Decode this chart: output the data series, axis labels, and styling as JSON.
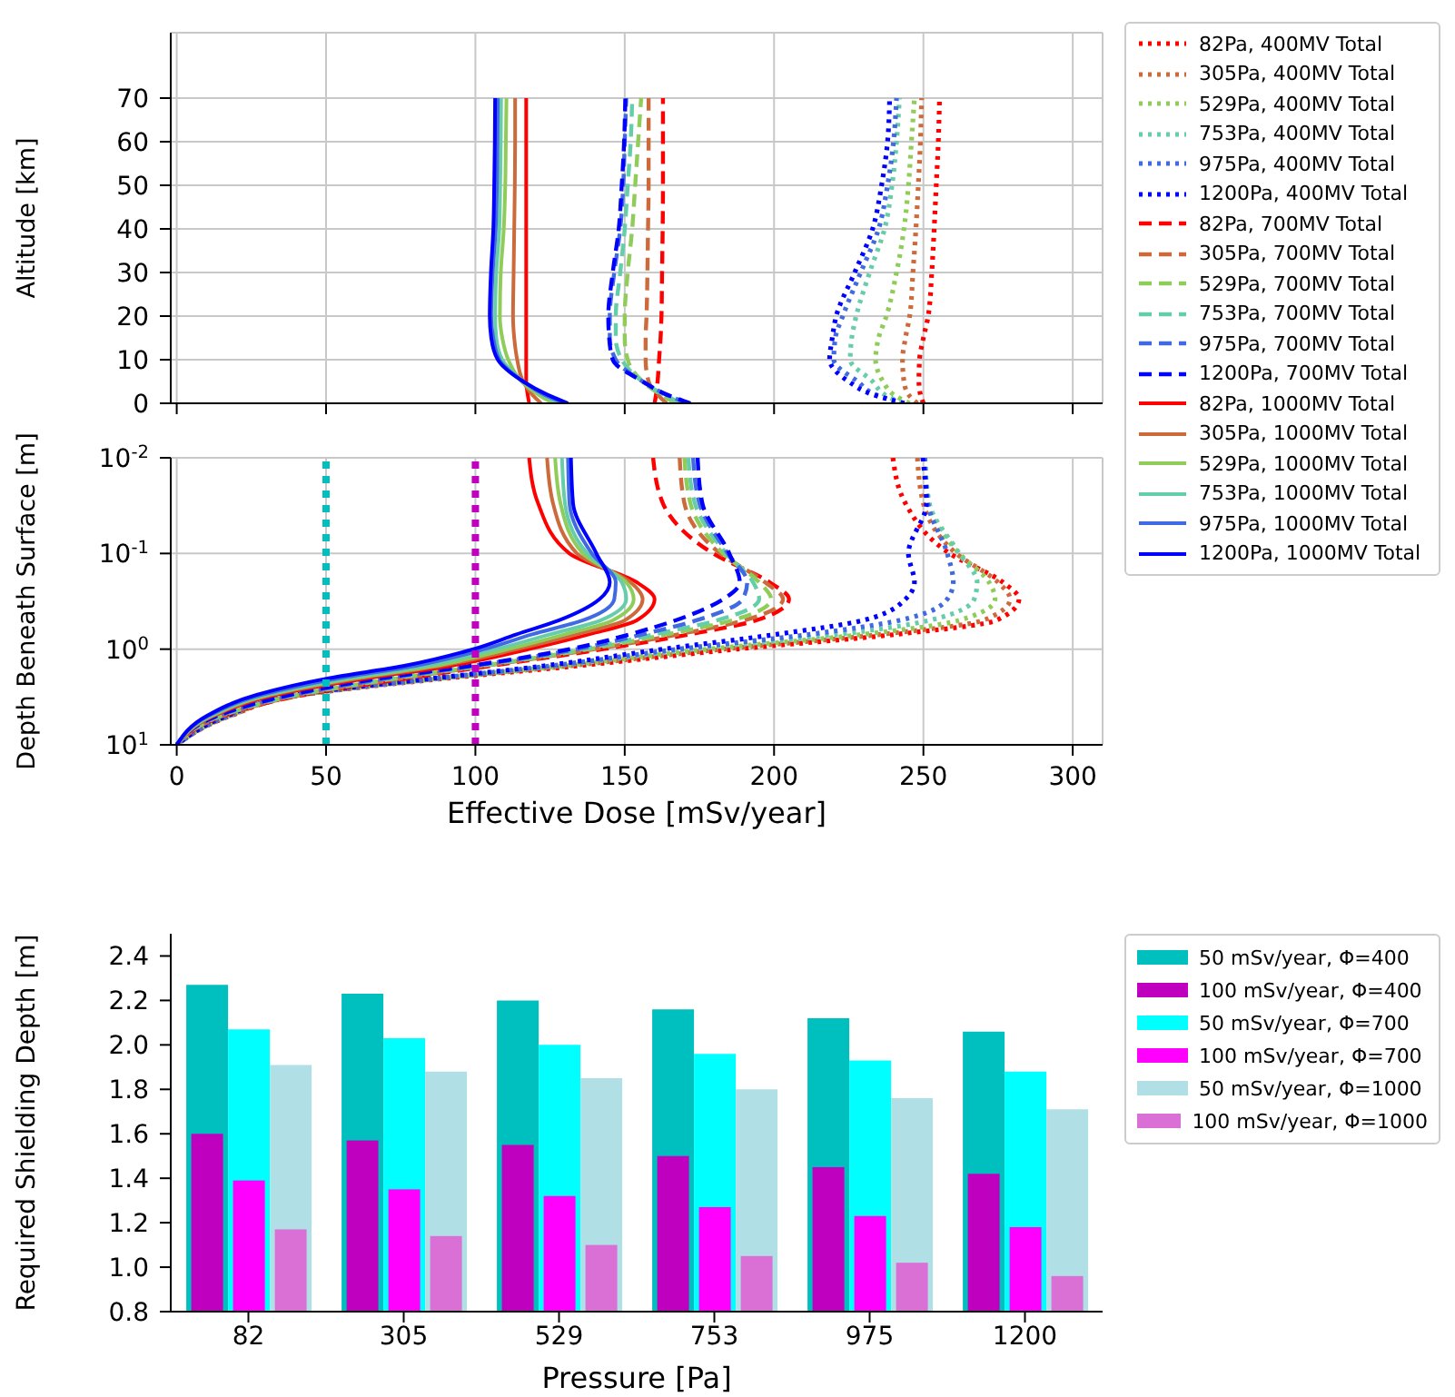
{
  "chart_data": [
    {
      "type": "line",
      "ylabel": "Altitude [km]",
      "xlim": [
        -2,
        310
      ],
      "xticks": [
        0,
        50,
        100,
        150,
        200,
        250,
        300
      ],
      "ylim": [
        0,
        85
      ],
      "yticks": [
        0,
        10,
        20,
        30,
        40,
        50,
        60,
        70
      ],
      "grid": true,
      "legend": "right",
      "tick_labels": "y",
      "series": [
        {
          "name": "82Pa, 400MV Total",
          "color": "#ff0000",
          "line_style": "dotted",
          "x": [
            250,
            249,
            248.5,
            248.7,
            250,
            251.6,
            252.8,
            253.6,
            254.3,
            255,
            255.4
          ],
          "values": [
            0,
            2,
            5,
            10,
            15,
            20,
            30,
            40,
            50,
            60,
            70
          ]
        },
        {
          "name": "305Pa, 400MV Total",
          "color": "#cd6a3c",
          "line_style": "dotted",
          "x": [
            248,
            245,
            243.5,
            243,
            244,
            245.4,
            246.5,
            247.5,
            248.3,
            249,
            249.4
          ],
          "values": [
            0,
            2,
            5,
            10,
            15,
            20,
            30,
            40,
            50,
            60,
            70
          ]
        },
        {
          "name": "529Pa, 400MV Total",
          "color": "#8fcc5a",
          "line_style": "dotted",
          "x": [
            245.4,
            240,
            236.5,
            234,
            235,
            237.6,
            241,
            243.5,
            245,
            246,
            247
          ],
          "values": [
            0,
            2,
            5,
            10,
            15,
            20,
            30,
            40,
            50,
            60,
            70
          ]
        },
        {
          "name": "753Pa, 400MV Total",
          "color": "#66cdaa",
          "line_style": "dotted",
          "x": [
            243,
            237,
            233,
            225.5,
            226,
            227.5,
            232,
            237,
            239.5,
            241,
            242
          ],
          "values": [
            0,
            2,
            5,
            10,
            15,
            20,
            30,
            40,
            50,
            60,
            70
          ]
        },
        {
          "name": "975Pa, 400MV Total",
          "color": "#4169e1",
          "line_style": "dotted",
          "x": [
            243.6,
            234,
            228,
            220,
            220.5,
            223,
            229,
            235,
            238,
            240,
            241
          ],
          "values": [
            0,
            2,
            5,
            10,
            15,
            20,
            30,
            40,
            50,
            60,
            70
          ]
        },
        {
          "name": "1200Pa, 400MV Total",
          "color": "#0000ff",
          "line_style": "dotted",
          "x": [
            243.6,
            233,
            225,
            218.6,
            219.5,
            220.8,
            227,
            233,
            236,
            238,
            238.7
          ],
          "values": [
            0,
            2,
            5,
            10,
            15,
            20,
            30,
            40,
            50,
            60,
            70
          ]
        },
        {
          "name": "82Pa, 700MV Total",
          "color": "#ff0000",
          "line_style": "dashed",
          "x": [
            160,
            160.5,
            161,
            161.5,
            162,
            162.3,
            162.5,
            162.7,
            162.8,
            162.8,
            162.8
          ],
          "values": [
            0,
            2,
            5,
            10,
            15,
            20,
            30,
            40,
            50,
            60,
            70
          ]
        },
        {
          "name": "305Pa, 700MV Total",
          "color": "#cd6a3c",
          "line_style": "dashed",
          "x": [
            164,
            161,
            158,
            157,
            157,
            157.3,
            157.6,
            157.8,
            158,
            158,
            158
          ],
          "values": [
            0,
            2,
            5,
            10,
            15,
            20,
            30,
            40,
            50,
            60,
            70
          ]
        },
        {
          "name": "529Pa, 700MV Total",
          "color": "#8fcc5a",
          "line_style": "dashed",
          "x": [
            167,
            162,
            156,
            151,
            150,
            150,
            151,
            152.5,
            153.5,
            154.5,
            155.5
          ],
          "values": [
            0,
            2,
            5,
            10,
            15,
            20,
            30,
            40,
            50,
            60,
            70
          ]
        },
        {
          "name": "753Pa, 700MV Total",
          "color": "#66cdaa",
          "line_style": "dashed",
          "x": [
            169,
            163,
            156,
            149,
            147,
            147,
            148.5,
            150,
            151,
            152,
            152.5
          ],
          "values": [
            0,
            2,
            5,
            10,
            15,
            20,
            30,
            40,
            50,
            60,
            70
          ]
        },
        {
          "name": "975Pa, 700MV Total",
          "color": "#4169e1",
          "line_style": "dashed",
          "x": [
            171,
            164,
            156,
            147,
            145,
            145,
            146.5,
            148.5,
            149.5,
            150,
            150.5
          ],
          "values": [
            0,
            2,
            5,
            10,
            15,
            20,
            30,
            40,
            50,
            60,
            70
          ]
        },
        {
          "name": "1200Pa, 700MV Total",
          "color": "#0000ff",
          "line_style": "dashed",
          "x": [
            172,
            164,
            156,
            146,
            144.8,
            144.5,
            146,
            148,
            149,
            149.8,
            150.2
          ],
          "values": [
            0,
            2,
            5,
            10,
            15,
            20,
            30,
            40,
            50,
            60,
            70
          ]
        },
        {
          "name": "82Pa, 1000MV Total",
          "color": "#ff0000",
          "line_style": "solid",
          "x": [
            118,
            117.5,
            117,
            117,
            117,
            117,
            117,
            117,
            117,
            117,
            117
          ],
          "values": [
            0,
            2,
            5,
            10,
            15,
            20,
            30,
            40,
            50,
            60,
            70
          ]
        },
        {
          "name": "305Pa, 1000MV Total",
          "color": "#cd6a3c",
          "line_style": "solid",
          "x": [
            122,
            119,
            116,
            114,
            113,
            112.6,
            112.8,
            113,
            113.2,
            113.3,
            113.3
          ],
          "values": [
            0,
            2,
            5,
            10,
            15,
            20,
            30,
            40,
            50,
            60,
            70
          ]
        },
        {
          "name": "529Pa, 1000MV Total",
          "color": "#8fcc5a",
          "line_style": "solid",
          "x": [
            126,
            121,
            115.5,
            111,
            109,
            108.2,
            108.5,
            109.5,
            110,
            110.2,
            110.4
          ],
          "values": [
            0,
            2,
            5,
            10,
            15,
            20,
            30,
            40,
            50,
            60,
            70
          ]
        },
        {
          "name": "753Pa, 1000MV Total",
          "color": "#66cdaa",
          "line_style": "solid",
          "x": [
            128,
            122.5,
            116,
            109,
            107,
            106.6,
            107,
            108,
            108.3,
            108.5,
            108.6
          ],
          "values": [
            0,
            2,
            5,
            10,
            15,
            20,
            30,
            40,
            50,
            60,
            70
          ]
        },
        {
          "name": "975Pa, 1000MV Total",
          "color": "#4169e1",
          "line_style": "solid",
          "x": [
            130,
            123,
            116,
            108,
            106,
            105.3,
            105.8,
            106.8,
            107.2,
            107.4,
            107.5
          ],
          "values": [
            0,
            2,
            5,
            10,
            15,
            20,
            30,
            40,
            50,
            60,
            70
          ]
        },
        {
          "name": "1200Pa, 1000MV Total",
          "color": "#0000ff",
          "line_style": "solid",
          "x": [
            131,
            124,
            116,
            107.5,
            105.3,
            104.8,
            105.2,
            106,
            106.3,
            106.5,
            106.6
          ],
          "values": [
            0,
            2,
            5,
            10,
            15,
            20,
            30,
            40,
            50,
            60,
            70
          ]
        }
      ]
    },
    {
      "type": "line",
      "xlabel": "Effective Dose [mSv/year]",
      "ylabel": "Depth Beneath Surface [m]",
      "xlim": [
        -2,
        310
      ],
      "xticks": [
        0,
        50,
        100,
        150,
        200,
        250,
        300
      ],
      "ylim": [
        10,
        0.01
      ],
      "log": "y",
      "yticks": [
        {
          "value": 0.01,
          "label": "10$^{-2}$"
        },
        {
          "value": 0.1,
          "label": "10$^{-1}$"
        },
        {
          "value": 1,
          "label": "10$^{0}$"
        },
        {
          "value": 10,
          "label": "10$^{1}$"
        }
      ],
      "grid": true,
      "ref_lines": [
        {
          "axis": "x",
          "value": 50,
          "color": "#00bfbf",
          "line_style": "dotted"
        },
        {
          "axis": "x",
          "value": 100,
          "color": "#bf00bf",
          "line_style": "dotted"
        }
      ],
      "series": [
        {
          "color": "#ff0000",
          "line_style": "dotted",
          "x": [
            239.8,
            244,
            258.8,
            276.6,
            282,
            274.4,
            241,
            187.4,
            133.8,
            91.5,
            42.4,
            17.8,
            0
          ],
          "values": [
            0.01,
            0.03,
            0.1,
            0.2,
            0.3,
            0.5,
            0.7,
            1,
            1.5,
            2,
            3,
            5,
            10
          ]
        },
        {
          "color": "#cd6a3c",
          "line_style": "dotted",
          "x": [
            248,
            250,
            261,
            275,
            279,
            270,
            236,
            183,
            131,
            90,
            42,
            17.6,
            0
          ],
          "values": [
            0.01,
            0.03,
            0.1,
            0.2,
            0.3,
            0.5,
            0.7,
            1,
            1.5,
            2,
            3,
            5,
            10
          ]
        },
        {
          "color": "#8fcc5a",
          "line_style": "dotted",
          "x": [
            250,
            251.5,
            262,
            272,
            274,
            262,
            230,
            178,
            129,
            89.5,
            41.6,
            17.4,
            0
          ],
          "values": [
            0.01,
            0.03,
            0.1,
            0.2,
            0.3,
            0.5,
            0.7,
            1,
            1.5,
            2,
            3,
            5,
            10
          ]
        },
        {
          "color": "#66cdaa",
          "line_style": "dotted",
          "x": [
            250.5,
            252,
            262,
            268,
            267,
            252,
            222,
            173,
            127,
            89,
            41.2,
            17.2,
            0
          ],
          "values": [
            0.01,
            0.03,
            0.1,
            0.2,
            0.3,
            0.5,
            0.7,
            1,
            1.5,
            2,
            3,
            5,
            10
          ]
        },
        {
          "color": "#4169e1",
          "line_style": "dotted",
          "x": [
            250.5,
            251.5,
            258,
            260,
            258,
            242,
            212,
            168,
            125,
            88,
            40.6,
            17,
            0
          ],
          "values": [
            0.01,
            0.03,
            0.1,
            0.2,
            0.3,
            0.5,
            0.7,
            1,
            1.5,
            2,
            3,
            5,
            10
          ]
        },
        {
          "color": "#0000ff",
          "line_style": "dotted",
          "x": [
            249.8,
            251,
            245,
            247,
            244,
            229.8,
            200.8,
            162.8,
            122.7,
            87,
            40,
            16.7,
            0
          ],
          "values": [
            0.01,
            0.03,
            0.1,
            0.2,
            0.3,
            0.5,
            0.7,
            1,
            1.5,
            2,
            3,
            5,
            10
          ]
        },
        {
          "color": "#ff0000",
          "line_style": "dashed",
          "x": [
            159.5,
            162.8,
            179.6,
            198.5,
            205,
            194,
            171.8,
            142.8,
            104.8,
            78,
            42.4,
            15.6,
            0
          ],
          "values": [
            0.01,
            0.03,
            0.1,
            0.2,
            0.3,
            0.5,
            0.7,
            1,
            1.5,
            2,
            3,
            5,
            10
          ]
        },
        {
          "color": "#cd6a3c",
          "line_style": "dashed",
          "x": [
            168.4,
            170,
            182,
            197,
            203,
            190,
            168,
            140,
            103,
            76,
            41.5,
            15.2,
            0
          ],
          "values": [
            0.01,
            0.03,
            0.1,
            0.2,
            0.3,
            0.5,
            0.7,
            1,
            1.5,
            2,
            3,
            5,
            10
          ]
        },
        {
          "color": "#8fcc5a",
          "line_style": "dashed",
          "x": [
            170,
            172,
            183,
            195,
            199,
            186,
            164,
            138,
            102,
            74.5,
            40.8,
            14.8,
            0
          ],
          "values": [
            0.01,
            0.03,
            0.1,
            0.2,
            0.3,
            0.5,
            0.7,
            1,
            1.5,
            2,
            3,
            5,
            10
          ]
        },
        {
          "color": "#66cdaa",
          "line_style": "dashed",
          "x": [
            171.3,
            173.5,
            184,
            193,
            195,
            181,
            160,
            136,
            100.5,
            72.5,
            40,
            14.3,
            0
          ],
          "values": [
            0.01,
            0.03,
            0.1,
            0.2,
            0.3,
            0.5,
            0.7,
            1,
            1.5,
            2,
            3,
            5,
            10
          ]
        },
        {
          "color": "#4169e1",
          "line_style": "dashed",
          "x": [
            172.9,
            175,
            184.5,
            191,
            189.5,
            174,
            156,
            134,
            99,
            71,
            39,
            13.8,
            0
          ],
          "values": [
            0.01,
            0.03,
            0.1,
            0.2,
            0.3,
            0.5,
            0.7,
            1,
            1.5,
            2,
            3,
            5,
            10
          ]
        },
        {
          "color": "#0000ff",
          "line_style": "dashed",
          "x": [
            174.4,
            176,
            185,
            188.5,
            183,
            167,
            151.7,
            131.6,
            98,
            69,
            38,
            13.4,
            0
          ],
          "values": [
            0.01,
            0.03,
            0.1,
            0.2,
            0.3,
            0.5,
            0.7,
            1,
            1.5,
            2,
            3,
            5,
            10
          ]
        },
        {
          "color": "#ff0000",
          "line_style": "solid",
          "x": [
            118,
            121,
            131.5,
            154,
            160,
            154,
            138,
            118,
            91.5,
            64.7,
            33.5,
            12.3,
            0
          ],
          "values": [
            0.01,
            0.03,
            0.1,
            0.2,
            0.3,
            0.5,
            0.7,
            1,
            1.5,
            2,
            3,
            5,
            10
          ]
        },
        {
          "color": "#cd6a3c",
          "line_style": "solid",
          "x": [
            124,
            126,
            134,
            152,
            156,
            150,
            134,
            114,
            88,
            62,
            32,
            12,
            0
          ],
          "values": [
            0.01,
            0.03,
            0.1,
            0.2,
            0.3,
            0.5,
            0.7,
            1,
            1.5,
            2,
            3,
            5,
            10
          ]
        },
        {
          "color": "#8fcc5a",
          "line_style": "solid",
          "x": [
            126.7,
            128.5,
            136,
            150.5,
            153,
            146,
            130,
            111,
            86,
            60,
            31,
            11.5,
            0
          ],
          "values": [
            0.01,
            0.03,
            0.1,
            0.2,
            0.3,
            0.5,
            0.7,
            1,
            1.5,
            2,
            3,
            5,
            10
          ]
        },
        {
          "color": "#66cdaa",
          "line_style": "solid",
          "x": [
            129,
            130,
            137.5,
            149,
            150.5,
            142,
            125,
            107,
            83,
            58,
            30,
            11,
            0
          ],
          "values": [
            0.01,
            0.03,
            0.1,
            0.2,
            0.3,
            0.5,
            0.7,
            1,
            1.5,
            2,
            3,
            5,
            10
          ]
        },
        {
          "color": "#4169e1",
          "line_style": "solid",
          "x": [
            131,
            131.5,
            139,
            147,
            146.5,
            136,
            119,
            103,
            79.5,
            55,
            28.5,
            10.5,
            0
          ],
          "values": [
            0.01,
            0.03,
            0.1,
            0.2,
            0.3,
            0.5,
            0.7,
            1,
            1.5,
            2,
            3,
            5,
            10
          ]
        },
        {
          "color": "#0000ff",
          "line_style": "solid",
          "x": [
            132,
            132.7,
            140.5,
            145,
            141.6,
            128,
            113.8,
            99.3,
            75.8,
            51.3,
            26.8,
            10,
            0
          ],
          "values": [
            0.01,
            0.03,
            0.1,
            0.2,
            0.3,
            0.5,
            0.7,
            1,
            1.5,
            2,
            3,
            5,
            10
          ]
        }
      ]
    },
    {
      "type": "bar",
      "xlabel": "Pressure [Pa]",
      "ylabel": "Required Shielding Depth [m]",
      "categories": [
        "82",
        "305",
        "529",
        "753",
        "975",
        "1200"
      ],
      "ylim": [
        0.8,
        2.5
      ],
      "yticks": [
        {
          "value": 0.8,
          "label": "0.8"
        },
        {
          "value": 1,
          "label": "1.0"
        },
        {
          "value": 1.2,
          "label": "1.2"
        },
        {
          "value": 1.4,
          "label": "1.4"
        },
        {
          "value": 1.6,
          "label": "1.6"
        },
        {
          "value": 1.8,
          "label": "1.8"
        },
        {
          "value": 2,
          "label": "2.0"
        },
        {
          "value": 2.2,
          "label": "2.2"
        },
        {
          "value": 2.4,
          "label": "2.4"
        }
      ],
      "legend": "right",
      "series": [
        {
          "name": "50 mSv/year, Φ=400",
          "color": "#00bfbf",
          "values": [
            2.27,
            2.23,
            2.2,
            2.16,
            2.12,
            2.06
          ]
        },
        {
          "name": "100 mSv/year, Φ=400",
          "color": "#bf00bf",
          "values": [
            1.6,
            1.57,
            1.55,
            1.5,
            1.45,
            1.42
          ]
        },
        {
          "name": "50 mSv/year, Φ=700",
          "color": "#00ffff",
          "values": [
            2.07,
            2.03,
            2.0,
            1.96,
            1.93,
            1.88
          ]
        },
        {
          "name": "100 mSv/year, Φ=700",
          "color": "#ff00ff",
          "values": [
            1.39,
            1.35,
            1.32,
            1.27,
            1.23,
            1.18
          ]
        },
        {
          "name": "50 mSv/year, Φ=1000",
          "color": "#b0e0e6",
          "values": [
            1.91,
            1.88,
            1.85,
            1.8,
            1.76,
            1.71
          ]
        },
        {
          "name": "100 mSv/year, Φ=1000",
          "color": "#da70d6",
          "values": [
            1.17,
            1.14,
            1.1,
            1.05,
            1.02,
            0.96
          ]
        }
      ]
    }
  ]
}
